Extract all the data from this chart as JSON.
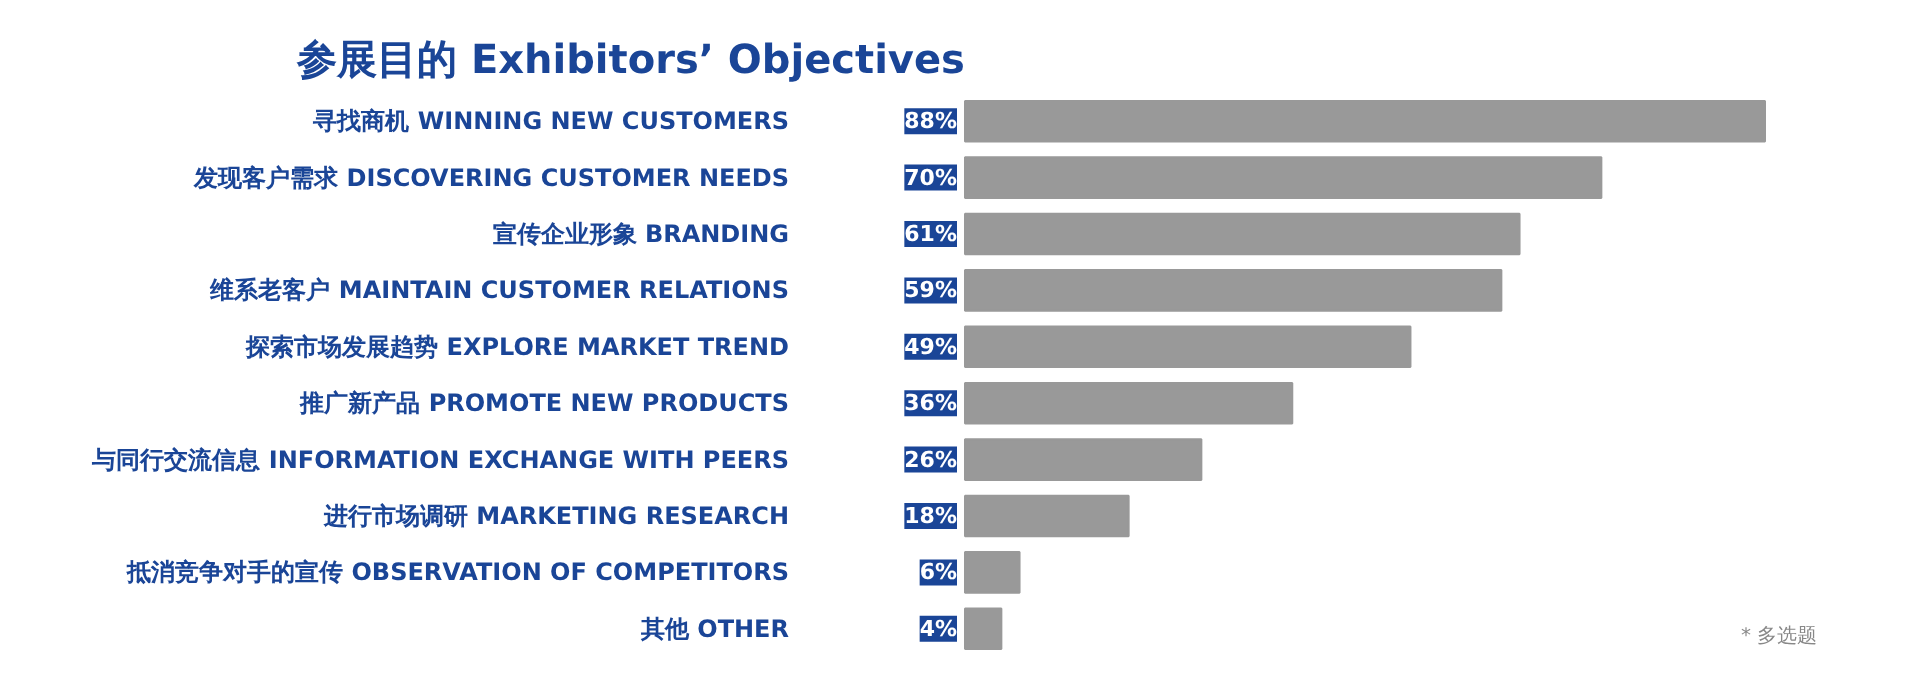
{
  "chart_data": {
    "type": "bar",
    "orientation": "horizontal",
    "title": "参展目的 Exhibitors’ Objectives",
    "categories": [
      "寻找商机 WINNING NEW CUSTOMERS",
      "发现客户需求 DISCOVERING CUSTOMER NEEDS",
      "宣传企业形象 BRANDING",
      "维系老客户 MAINTAIN CUSTOMER RELATIONS",
      "探索市场发展趋势 EXPLORE MARKET TREND",
      "推广新产品 PROMOTE NEW PRODUCTS",
      "与同行交流信息 INFORMATION EXCHANGE WITH PEERS",
      "进行市场调研 MARKETING RESEARCH",
      "抵消竞争对手的宣传 OBSERVATION OF COMPETITORS",
      "其他 OTHER"
    ],
    "values": [
      88,
      70,
      61,
      59,
      49,
      36,
      26,
      18,
      6,
      4
    ],
    "value_labels": [
      "88%",
      "70%",
      "61%",
      "59%",
      "49%",
      "36%",
      "26%",
      "18%",
      "6%",
      "4%"
    ],
    "color": "#999999",
    "tick_labels": "y",
    "grid": false,
    "annotations": [
      "* 多选题"
    ]
  }
}
